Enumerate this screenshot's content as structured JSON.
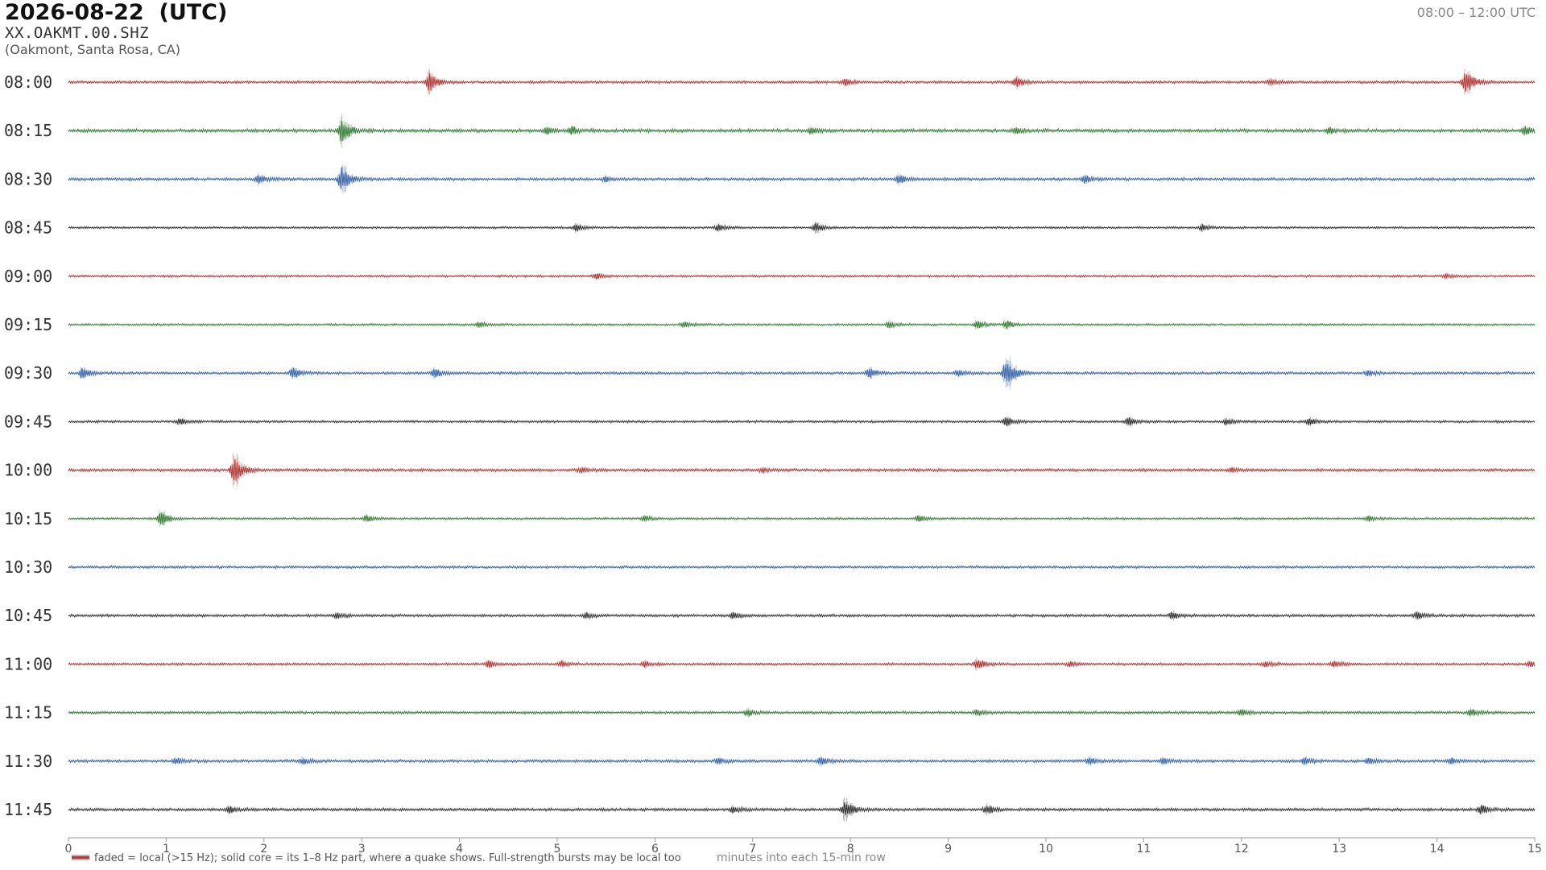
{
  "header": {
    "title": "2026-08-22  (UTC)",
    "station": "XX.OAKMT.00.SHZ",
    "location": "(Oakmont, Santa Rosa, CA)",
    "time_range": "08:00 – 12:00 UTC"
  },
  "colors": {
    "red": "#b03a3a",
    "green": "#3a7d3a",
    "blue": "#3a66a8",
    "black": "#333333"
  },
  "chart_data": {
    "type": "line",
    "subtype": "helicorder",
    "xlabel": "minutes into each 15-min row",
    "xlim": [
      0,
      15
    ],
    "x_ticks": [
      "0",
      "1",
      "2",
      "3",
      "4",
      "5",
      "6",
      "7",
      "8",
      "9",
      "10",
      "11",
      "12",
      "13",
      "14",
      "15"
    ],
    "legend": "faded = local (>15 Hz); solid core = its 1–8 Hz part, where a quake shows. Full-strength bursts may be local too",
    "legend_placement": "bottom-left",
    "color_cycle": [
      "red",
      "green",
      "blue",
      "black"
    ],
    "rows": [
      {
        "label": "08:00",
        "noise": 0.55,
        "events": [
          {
            "t": 3.7,
            "amp": 4.5
          },
          {
            "t": 7.95,
            "amp": 1.6
          },
          {
            "t": 9.7,
            "amp": 2.2
          },
          {
            "t": 12.3,
            "amp": 1.3
          },
          {
            "t": 14.3,
            "amp": 5.0
          }
        ]
      },
      {
        "label": "08:15",
        "noise": 0.7,
        "events": [
          {
            "t": 2.8,
            "amp": 5.5
          },
          {
            "t": 4.9,
            "amp": 1.6
          },
          {
            "t": 5.15,
            "amp": 1.8
          },
          {
            "t": 7.6,
            "amp": 1.5
          },
          {
            "t": 9.7,
            "amp": 1.2
          },
          {
            "t": 12.9,
            "amp": 1.4
          },
          {
            "t": 14.9,
            "amp": 1.8
          }
        ]
      },
      {
        "label": "08:30",
        "noise": 0.6,
        "events": [
          {
            "t": 1.95,
            "amp": 2.2
          },
          {
            "t": 2.8,
            "amp": 6.0
          },
          {
            "t": 5.5,
            "amp": 1.2
          },
          {
            "t": 8.5,
            "amp": 2.0
          },
          {
            "t": 10.4,
            "amp": 1.6
          }
        ]
      },
      {
        "label": "08:45",
        "noise": 0.45,
        "events": [
          {
            "t": 5.2,
            "amp": 1.6
          },
          {
            "t": 6.65,
            "amp": 1.5
          },
          {
            "t": 7.65,
            "amp": 2.2
          },
          {
            "t": 11.6,
            "amp": 1.3
          }
        ]
      },
      {
        "label": "09:00",
        "noise": 0.45,
        "events": [
          {
            "t": 5.4,
            "amp": 1.3
          },
          {
            "t": 14.1,
            "amp": 1.0
          }
        ]
      },
      {
        "label": "09:15",
        "noise": 0.45,
        "events": [
          {
            "t": 4.2,
            "amp": 1.3
          },
          {
            "t": 6.3,
            "amp": 1.3
          },
          {
            "t": 8.4,
            "amp": 1.5
          },
          {
            "t": 9.3,
            "amp": 1.8
          },
          {
            "t": 9.6,
            "amp": 1.9
          }
        ]
      },
      {
        "label": "09:30",
        "noise": 0.55,
        "events": [
          {
            "t": 0.15,
            "amp": 2.6
          },
          {
            "t": 2.3,
            "amp": 2.5
          },
          {
            "t": 3.75,
            "amp": 2.0
          },
          {
            "t": 8.2,
            "amp": 2.2
          },
          {
            "t": 9.1,
            "amp": 1.5
          },
          {
            "t": 9.6,
            "amp": 7.0
          },
          {
            "t": 13.3,
            "amp": 1.3
          }
        ]
      },
      {
        "label": "09:45",
        "noise": 0.5,
        "events": [
          {
            "t": 1.15,
            "amp": 1.4
          },
          {
            "t": 9.6,
            "amp": 1.9
          },
          {
            "t": 10.85,
            "amp": 2.0
          },
          {
            "t": 11.85,
            "amp": 1.4
          },
          {
            "t": 12.7,
            "amp": 1.7
          }
        ]
      },
      {
        "label": "10:00",
        "noise": 0.6,
        "events": [
          {
            "t": 1.7,
            "amp": 6.5
          },
          {
            "t": 5.25,
            "amp": 1.2
          },
          {
            "t": 7.1,
            "amp": 1.1
          },
          {
            "t": 11.9,
            "amp": 1.1
          }
        ]
      },
      {
        "label": "10:15",
        "noise": 0.45,
        "events": [
          {
            "t": 0.95,
            "amp": 3.3
          },
          {
            "t": 3.05,
            "amp": 1.5
          },
          {
            "t": 5.9,
            "amp": 1.3
          },
          {
            "t": 8.7,
            "amp": 1.4
          },
          {
            "t": 13.3,
            "amp": 1.3
          }
        ]
      },
      {
        "label": "10:30",
        "noise": 0.5,
        "events": []
      },
      {
        "label": "10:45",
        "noise": 0.55,
        "events": [
          {
            "t": 2.75,
            "amp": 1.2
          },
          {
            "t": 5.3,
            "amp": 1.2
          },
          {
            "t": 6.8,
            "amp": 1.3
          },
          {
            "t": 11.3,
            "amp": 1.6
          },
          {
            "t": 13.8,
            "amp": 1.5
          }
        ]
      },
      {
        "label": "11:00",
        "noise": 0.5,
        "events": [
          {
            "t": 4.3,
            "amp": 1.4
          },
          {
            "t": 5.05,
            "amp": 1.3
          },
          {
            "t": 5.9,
            "amp": 1.4
          },
          {
            "t": 9.3,
            "amp": 2.3
          },
          {
            "t": 10.25,
            "amp": 1.2
          },
          {
            "t": 12.25,
            "amp": 1.2
          },
          {
            "t": 12.95,
            "amp": 1.3
          },
          {
            "t": 14.95,
            "amp": 1.3
          }
        ]
      },
      {
        "label": "11:15",
        "noise": 0.55,
        "events": [
          {
            "t": 6.95,
            "amp": 1.6
          },
          {
            "t": 9.3,
            "amp": 1.3
          },
          {
            "t": 12.0,
            "amp": 1.5
          },
          {
            "t": 14.35,
            "amp": 1.5
          }
        ]
      },
      {
        "label": "11:30",
        "noise": 0.6,
        "events": [
          {
            "t": 1.1,
            "amp": 1.4
          },
          {
            "t": 2.4,
            "amp": 1.4
          },
          {
            "t": 6.65,
            "amp": 1.5
          },
          {
            "t": 7.7,
            "amp": 1.8
          },
          {
            "t": 10.45,
            "amp": 1.6
          },
          {
            "t": 11.2,
            "amp": 1.3
          },
          {
            "t": 12.65,
            "amp": 1.6
          },
          {
            "t": 13.3,
            "amp": 1.4
          },
          {
            "t": 14.15,
            "amp": 1.3
          }
        ]
      },
      {
        "label": "11:45",
        "noise": 0.6,
        "events": [
          {
            "t": 1.65,
            "amp": 1.6
          },
          {
            "t": 6.8,
            "amp": 1.4
          },
          {
            "t": 7.95,
            "amp": 4.0
          },
          {
            "t": 9.4,
            "amp": 1.8
          },
          {
            "t": 14.45,
            "amp": 1.8
          }
        ]
      }
    ]
  }
}
